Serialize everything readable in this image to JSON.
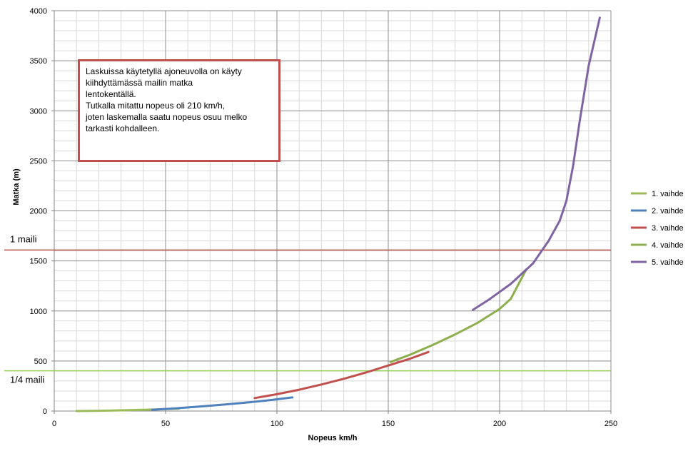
{
  "chart_data": {
    "type": "line",
    "xlabel": "Nopeus km/h",
    "ylabel": "Matka (m)",
    "xlim": [
      0,
      250
    ],
    "ylim": [
      0,
      4000
    ],
    "x_ticks": [
      "0",
      "50",
      "100",
      "150",
      "200",
      "250"
    ],
    "y_ticks": [
      "0",
      "500",
      "1000",
      "1500",
      "2000",
      "2500",
      "3000",
      "3500",
      "4000"
    ],
    "grid": true,
    "legend_position": "right",
    "series": [
      {
        "name": "1. vaihde",
        "color": "#9bbb59",
        "x": [
          10,
          20,
          30,
          40,
          50,
          56
        ],
        "y": [
          0,
          3,
          7,
          12,
          19,
          24
        ]
      },
      {
        "name": "2. vaihde",
        "color": "#4f81bd",
        "x": [
          44,
          55,
          65,
          75,
          85,
          95,
          107
        ],
        "y": [
          13,
          28,
          45,
          62,
          82,
          104,
          136
        ]
      },
      {
        "name": "3. vaihde",
        "color": "#c0504d",
        "x": [
          90,
          100,
          110,
          120,
          130,
          140,
          150,
          160,
          168
        ],
        "y": [
          130,
          168,
          213,
          265,
          322,
          385,
          455,
          525,
          590
        ]
      },
      {
        "name": "4. vaihde",
        "color": "#8db04f",
        "x": [
          151,
          160,
          170,
          180,
          190,
          200,
          205,
          212
        ],
        "y": [
          490,
          565,
          660,
          765,
          880,
          1020,
          1120,
          1415
        ]
      },
      {
        "name": "5. vaihde",
        "color": "#8064a2",
        "x": [
          188,
          195,
          205,
          215,
          222,
          227,
          230,
          233,
          236,
          240,
          245
        ],
        "y": [
          1010,
          1110,
          1270,
          1475,
          1700,
          1900,
          2100,
          2450,
          2900,
          3450,
          3930
        ]
      }
    ],
    "reference_lines": [
      {
        "label": "1 maili",
        "y": 1609,
        "color": "#c0504d"
      },
      {
        "label": "1/4 maili",
        "y": 402,
        "color": "#92d050"
      }
    ],
    "annotation": {
      "lines": [
        "Laskuissa käytetyllä ajoneuvolla on käyty",
        "kiihdyttämässä mailin matka",
        "lentokentällä.",
        "Tutkalla mitattu nopeus oli 210 km/h,",
        "joten laskemalla saatu nopeus osuu melko",
        "tarkasti kohdalleen."
      ],
      "border_color": "#c0504d"
    }
  }
}
